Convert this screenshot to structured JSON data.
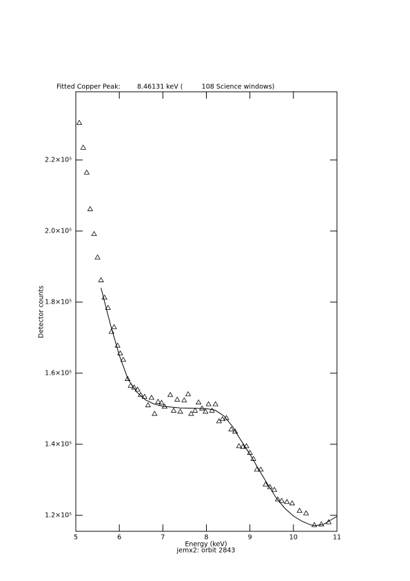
{
  "chart_data": {
    "type": "scatter",
    "title": "Fitted Copper Peak:        8.46131 keV (         108 Science windows)",
    "x_label": "Energy (keV)",
    "subtitle": "jemx2: orbit 2843",
    "y_label": "Detector counts",
    "xlim": [
      5,
      11
    ],
    "xticks": [
      5,
      6,
      7,
      8,
      9,
      10,
      11
    ],
    "ylim": [
      115500,
      239200
    ],
    "yticks": [
      {
        "value": 120000,
        "label": "1.2×10⁵"
      },
      {
        "value": 140000,
        "label": "1.4×10⁵"
      },
      {
        "value": 160000,
        "label": "1.6×10⁵"
      },
      {
        "value": 180000,
        "label": "1.8×10⁵"
      },
      {
        "value": 200000,
        "label": "2.0×10⁵"
      },
      {
        "value": 220000,
        "label": "2.2×10⁵"
      }
    ],
    "color": "#000000",
    "series": [
      {
        "mode": "markers",
        "x": [
          5.08,
          5.17,
          5.25,
          5.33,
          5.42,
          5.5,
          5.58,
          5.66,
          5.74,
          5.82,
          5.88,
          5.96,
          6.02,
          6.09,
          6.19,
          6.26,
          6.34,
          6.42,
          6.49,
          6.58,
          6.66,
          6.74,
          6.81,
          6.89,
          6.97,
          7.04,
          7.17,
          7.25,
          7.33,
          7.4,
          7.49,
          7.58,
          7.65,
          7.74,
          7.82,
          7.9,
          7.98,
          8.05,
          8.13,
          8.21,
          8.29,
          8.37,
          8.46,
          8.57,
          8.66,
          8.75,
          8.84,
          8.92,
          9.0,
          9.08,
          9.16,
          9.25,
          9.36,
          9.46,
          9.56,
          9.64,
          9.73,
          9.85,
          9.97,
          10.14,
          10.29,
          10.48,
          10.64,
          10.81
        ],
        "values": [
          230500,
          223500,
          216500,
          206200,
          199200,
          192600,
          186200,
          181300,
          178400,
          171700,
          173000,
          167800,
          165600,
          163800,
          158400,
          156500,
          156000,
          155400,
          153900,
          153400,
          151000,
          153100,
          148600,
          152000,
          151700,
          150600,
          153900,
          149500,
          152600,
          149200,
          152400,
          154100,
          148600,
          149500,
          151800,
          150100,
          149200,
          151300,
          149500,
          151300,
          146500,
          147100,
          147400,
          144200,
          143600,
          139500,
          139300,
          139500,
          137600,
          135900,
          132900,
          132900,
          128700,
          128000,
          127200,
          124500,
          124100,
          123800,
          123400,
          121300,
          120600,
          117300,
          117500,
          118100
        ]
      },
      {
        "mode": "line",
        "x": [
          5.58,
          5.8,
          6.0,
          6.2,
          6.4,
          6.6,
          6.8,
          7.0,
          7.4,
          7.8,
          8.0,
          8.2,
          8.4,
          8.6,
          8.8,
          9.0,
          9.2,
          9.4,
          9.6,
          9.8,
          10.0,
          10.2,
          10.4,
          10.5,
          10.7,
          10.9,
          11.0
        ],
        "values": [
          184000,
          173500,
          165000,
          158300,
          154700,
          152500,
          151300,
          150700,
          150200,
          150100,
          150000,
          149600,
          148000,
          145000,
          141000,
          137200,
          133000,
          128900,
          125000,
          122000,
          119800,
          118300,
          117300,
          117100,
          117500,
          119000,
          119700
        ]
      }
    ]
  }
}
